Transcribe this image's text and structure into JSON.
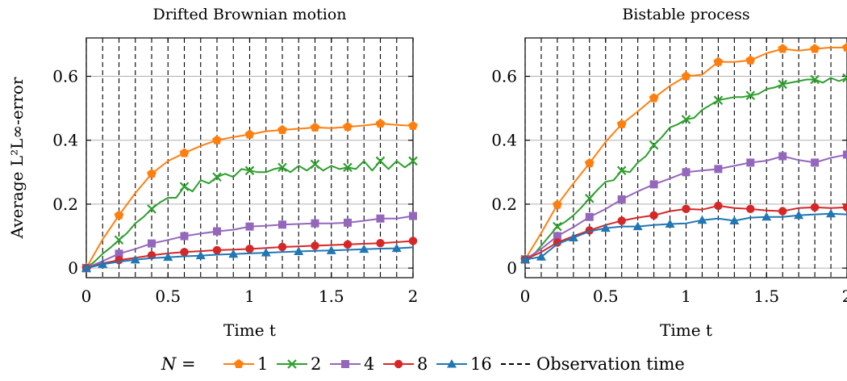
{
  "legend": {
    "prefix": "N =",
    "observation_label": "Observation time"
  },
  "colors": {
    "N1": "#ff7f0e",
    "N2": "#2ca02c",
    "N4": "#9467bd",
    "N8": "#d62728",
    "N16": "#1f77b4",
    "grid": "#b0b0b0",
    "observation": "#000000"
  },
  "chart_data": [
    {
      "type": "line",
      "title": "Drifted Brownian motion",
      "xlabel": "Time t",
      "ylabel": "Average L²L∞-error",
      "xlim": [
        0,
        2
      ],
      "ylim": [
        -0.03,
        0.72
      ],
      "xticks": [
        "0",
        "0.5",
        "1",
        "1.5",
        "2"
      ],
      "yticks": [
        "0",
        "0.2",
        "0.4",
        "0.6"
      ],
      "grid": "horizontal",
      "observation_times": [
        0,
        0.1,
        0.2,
        0.3,
        0.4,
        0.5,
        0.6,
        0.7,
        0.8,
        0.9,
        1.0,
        1.1,
        1.2,
        1.3,
        1.4,
        1.5,
        1.6,
        1.7,
        1.8,
        1.9,
        2.0
      ],
      "series": [
        {
          "name": "1",
          "marker": "pentagon",
          "x": [
            0,
            0.1,
            0.2,
            0.3,
            0.4,
            0.5,
            0.6,
            0.7,
            0.8,
            0.9,
            1.0,
            1.1,
            1.2,
            1.3,
            1.4,
            1.5,
            1.6,
            1.7,
            1.8,
            1.9,
            2.0
          ],
          "y": [
            0,
            0.09,
            0.165,
            0.235,
            0.295,
            0.335,
            0.36,
            0.382,
            0.4,
            0.41,
            0.418,
            0.428,
            0.432,
            0.436,
            0.44,
            0.438,
            0.442,
            0.446,
            0.452,
            0.448,
            0.445
          ],
          "markers_at": [
            0,
            0.2,
            0.4,
            0.6,
            0.8,
            1.0,
            1.2,
            1.4,
            1.6,
            1.8,
            2.0
          ]
        },
        {
          "name": "2",
          "marker": "x",
          "x": [
            0,
            0.05,
            0.1,
            0.15,
            0.2,
            0.25,
            0.3,
            0.35,
            0.4,
            0.45,
            0.5,
            0.55,
            0.6,
            0.65,
            0.7,
            0.75,
            0.8,
            0.85,
            0.9,
            0.95,
            1.0,
            1.05,
            1.1,
            1.15,
            1.2,
            1.25,
            1.3,
            1.35,
            1.4,
            1.45,
            1.5,
            1.55,
            1.6,
            1.65,
            1.7,
            1.75,
            1.8,
            1.85,
            1.9,
            1.95,
            2.0
          ],
          "y": [
            0,
            0.02,
            0.045,
            0.065,
            0.088,
            0.11,
            0.14,
            0.16,
            0.185,
            0.205,
            0.22,
            0.22,
            0.255,
            0.24,
            0.275,
            0.265,
            0.285,
            0.295,
            0.285,
            0.31,
            0.305,
            0.3,
            0.3,
            0.31,
            0.315,
            0.3,
            0.32,
            0.305,
            0.325,
            0.305,
            0.32,
            0.31,
            0.315,
            0.31,
            0.335,
            0.305,
            0.335,
            0.31,
            0.335,
            0.315,
            0.335
          ],
          "markers_at": [
            0,
            0.2,
            0.4,
            0.6,
            0.8,
            1.0,
            1.2,
            1.4,
            1.6,
            1.8,
            2.0
          ]
        },
        {
          "name": "4",
          "marker": "square",
          "x": [
            0,
            0.1,
            0.2,
            0.3,
            0.4,
            0.5,
            0.6,
            0.7,
            0.8,
            0.9,
            1.0,
            1.1,
            1.2,
            1.3,
            1.4,
            1.5,
            1.6,
            1.7,
            1.8,
            1.9,
            2.0
          ],
          "y": [
            0,
            0.022,
            0.045,
            0.06,
            0.077,
            0.088,
            0.1,
            0.108,
            0.115,
            0.12,
            0.13,
            0.132,
            0.136,
            0.138,
            0.14,
            0.14,
            0.142,
            0.148,
            0.155,
            0.155,
            0.163
          ],
          "markers_at": [
            0,
            0.2,
            0.4,
            0.6,
            0.8,
            1.0,
            1.2,
            1.4,
            1.6,
            1.8,
            2.0
          ]
        },
        {
          "name": "8",
          "marker": "circle",
          "x": [
            0,
            0.1,
            0.2,
            0.3,
            0.4,
            0.5,
            0.6,
            0.7,
            0.8,
            0.9,
            1.0,
            1.1,
            1.2,
            1.3,
            1.4,
            1.5,
            1.6,
            1.7,
            1.8,
            1.9,
            2.0
          ],
          "y": [
            0,
            0.015,
            0.025,
            0.032,
            0.04,
            0.046,
            0.05,
            0.053,
            0.056,
            0.058,
            0.06,
            0.063,
            0.066,
            0.068,
            0.07,
            0.072,
            0.074,
            0.076,
            0.078,
            0.081,
            0.085
          ],
          "markers_at": [
            0,
            0.2,
            0.4,
            0.6,
            0.8,
            1.0,
            1.2,
            1.4,
            1.6,
            1.8,
            2.0
          ]
        },
        {
          "name": "16",
          "marker": "triangle",
          "x": [
            0,
            0.1,
            0.2,
            0.3,
            0.4,
            0.5,
            0.6,
            0.7,
            0.8,
            0.9,
            1.0,
            1.1,
            1.2,
            1.3,
            1.4,
            1.5,
            1.6,
            1.7,
            1.8,
            1.9,
            2.0
          ],
          "y": [
            0,
            0.012,
            0.02,
            0.026,
            0.031,
            0.034,
            0.037,
            0.039,
            0.042,
            0.044,
            0.046,
            0.048,
            0.05,
            0.052,
            0.054,
            0.055,
            0.057,
            0.059,
            0.061,
            0.062,
            0.065
          ],
          "markers_at": [
            0,
            0.1,
            0.3,
            0.5,
            0.7,
            0.9,
            1.1,
            1.3,
            1.5,
            1.7,
            1.9
          ]
        }
      ]
    },
    {
      "type": "line",
      "title": "Bistable process",
      "xlabel": "Time t",
      "ylabel": "",
      "xlim": [
        0,
        2
      ],
      "ylim": [
        -0.03,
        0.72
      ],
      "xticks": [
        "0",
        "0.5",
        "1",
        "1.5",
        "2"
      ],
      "yticks": [
        "0",
        "0.2",
        "0.4",
        "0.6"
      ],
      "grid": "horizontal",
      "observation_times": [
        0,
        0.1,
        0.2,
        0.3,
        0.4,
        0.5,
        0.6,
        0.7,
        0.8,
        0.9,
        1.0,
        1.1,
        1.2,
        1.3,
        1.4,
        1.5,
        1.6,
        1.7,
        1.8,
        1.9,
        2.0
      ],
      "series": [
        {
          "name": "1",
          "marker": "pentagon",
          "x": [
            0,
            0.1,
            0.2,
            0.3,
            0.4,
            0.5,
            0.6,
            0.7,
            0.8,
            0.9,
            1.0,
            1.1,
            1.2,
            1.3,
            1.4,
            1.5,
            1.6,
            1.7,
            1.8,
            1.9,
            2.0
          ],
          "y": [
            0.027,
            0.11,
            0.198,
            0.265,
            0.328,
            0.395,
            0.45,
            0.49,
            0.532,
            0.57,
            0.6,
            0.605,
            0.645,
            0.645,
            0.65,
            0.672,
            0.686,
            0.68,
            0.686,
            0.69,
            0.69
          ],
          "markers_at": [
            0,
            0.2,
            0.4,
            0.6,
            0.8,
            1.0,
            1.2,
            1.4,
            1.6,
            1.8,
            2.0
          ]
        },
        {
          "name": "2",
          "marker": "x",
          "x": [
            0,
            0.05,
            0.1,
            0.15,
            0.2,
            0.25,
            0.3,
            0.35,
            0.4,
            0.45,
            0.5,
            0.55,
            0.6,
            0.65,
            0.7,
            0.75,
            0.8,
            0.85,
            0.9,
            0.95,
            1.0,
            1.05,
            1.1,
            1.15,
            1.2,
            1.25,
            1.3,
            1.35,
            1.4,
            1.45,
            1.5,
            1.55,
            1.6,
            1.65,
            1.7,
            1.75,
            1.8,
            1.85,
            1.9,
            1.95,
            2.0
          ],
          "y": [
            0.027,
            0.04,
            0.07,
            0.1,
            0.13,
            0.145,
            0.165,
            0.19,
            0.218,
            0.245,
            0.27,
            0.275,
            0.305,
            0.3,
            0.33,
            0.35,
            0.385,
            0.41,
            0.44,
            0.45,
            0.465,
            0.47,
            0.495,
            0.51,
            0.525,
            0.53,
            0.535,
            0.535,
            0.54,
            0.545,
            0.56,
            0.565,
            0.575,
            0.58,
            0.585,
            0.59,
            0.59,
            0.58,
            0.595,
            0.585,
            0.595
          ],
          "markers_at": [
            0,
            0.2,
            0.4,
            0.6,
            0.8,
            1.0,
            1.2,
            1.4,
            1.6,
            1.8,
            2.0
          ]
        },
        {
          "name": "4",
          "marker": "square",
          "x": [
            0,
            0.1,
            0.2,
            0.3,
            0.4,
            0.5,
            0.6,
            0.7,
            0.8,
            0.9,
            1.0,
            1.1,
            1.2,
            1.3,
            1.4,
            1.5,
            1.6,
            1.7,
            1.8,
            1.9,
            2.0
          ],
          "y": [
            0.027,
            0.06,
            0.1,
            0.128,
            0.16,
            0.185,
            0.215,
            0.24,
            0.262,
            0.28,
            0.3,
            0.305,
            0.31,
            0.32,
            0.33,
            0.336,
            0.35,
            0.338,
            0.33,
            0.345,
            0.355
          ],
          "markers_at": [
            0,
            0.2,
            0.4,
            0.6,
            0.8,
            1.0,
            1.2,
            1.4,
            1.6,
            1.8,
            2.0
          ]
        },
        {
          "name": "8",
          "marker": "circle",
          "x": [
            0,
            0.1,
            0.2,
            0.3,
            0.4,
            0.5,
            0.6,
            0.7,
            0.8,
            0.9,
            1.0,
            1.1,
            1.2,
            1.3,
            1.4,
            1.5,
            1.6,
            1.7,
            1.8,
            1.9,
            2.0
          ],
          "y": [
            0.027,
            0.05,
            0.08,
            0.1,
            0.118,
            0.135,
            0.148,
            0.158,
            0.165,
            0.178,
            0.185,
            0.183,
            0.195,
            0.188,
            0.185,
            0.18,
            0.178,
            0.188,
            0.19,
            0.188,
            0.19
          ],
          "markers_at": [
            0,
            0.2,
            0.4,
            0.6,
            0.8,
            1.0,
            1.2,
            1.4,
            1.6,
            1.8,
            2.0
          ]
        },
        {
          "name": "16",
          "marker": "triangle",
          "x": [
            0,
            0.1,
            0.2,
            0.3,
            0.4,
            0.5,
            0.6,
            0.7,
            0.8,
            0.9,
            1.0,
            1.1,
            1.2,
            1.3,
            1.4,
            1.5,
            1.6,
            1.7,
            1.8,
            1.9,
            2.0
          ],
          "y": [
            0.027,
            0.035,
            0.075,
            0.095,
            0.115,
            0.125,
            0.13,
            0.13,
            0.135,
            0.138,
            0.14,
            0.15,
            0.155,
            0.148,
            0.158,
            0.16,
            0.16,
            0.165,
            0.168,
            0.17,
            0.168
          ],
          "markers_at": [
            0,
            0.1,
            0.3,
            0.5,
            0.7,
            0.9,
            1.1,
            1.3,
            1.5,
            1.7,
            1.9
          ]
        }
      ]
    }
  ]
}
